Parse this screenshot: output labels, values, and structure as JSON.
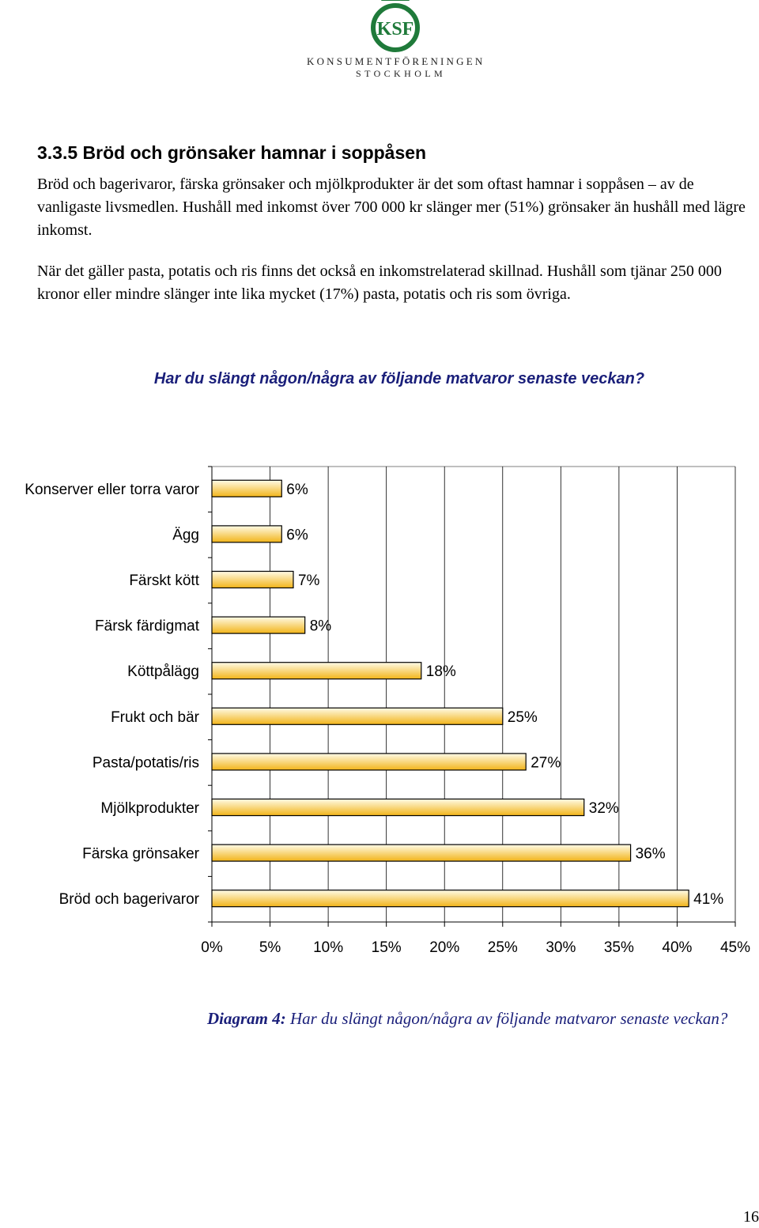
{
  "logo": {
    "monogram": "KSF",
    "line1": "KONSUMENTFÖRENINGEN",
    "line2": "STOCKHOLM",
    "green": "#1f7a3a"
  },
  "section": {
    "heading": "3.3.5 Bröd och grönsaker hamnar i soppåsen",
    "paragraph1": "Bröd och bagerivaror, färska grönsaker och mjölkprodukter är det som oftast hamnar i soppåsen – av de vanligaste livsmedlen. Hushåll med inkomst över 700 000 kr slänger mer (51%) grönsaker än hushåll med lägre inkomst.",
    "paragraph2": "När det gäller pasta, potatis och ris finns det också en inkomstrelaterad skillnad. Hushåll som tjänar 250 000 kronor eller mindre slänger inte lika mycket (17%) pasta, potatis och ris som övriga."
  },
  "chart_data": {
    "type": "bar",
    "orientation": "horizontal",
    "title": "Har du slängt någon/några av följande matvaror senaste veckan?",
    "categories": [
      "Konserver eller torra varor",
      "Ägg",
      "Färskt kött",
      "Färsk färdigmat",
      "Köttpålägg",
      "Frukt och bär",
      "Pasta/potatis/ris",
      "Mjölkprodukter",
      "Färska grönsaker",
      "Bröd och bagerivaror"
    ],
    "values": [
      6,
      6,
      7,
      8,
      18,
      25,
      27,
      32,
      36,
      41
    ],
    "value_labels": [
      "6%",
      "6%",
      "7%",
      "8%",
      "18%",
      "25%",
      "27%",
      "32%",
      "36%",
      "41%"
    ],
    "xlim": [
      0,
      45
    ],
    "x_ticks": [
      0,
      5,
      10,
      15,
      20,
      25,
      30,
      35,
      40,
      45
    ],
    "x_tick_labels": [
      "0%",
      "5%",
      "10%",
      "15%",
      "20%",
      "25%",
      "30%",
      "35%",
      "40%",
      "45%"
    ],
    "grid": true,
    "legend": "none",
    "bar_color_light": "#fffbe8",
    "bar_color_dark": "#f2b418"
  },
  "caption": {
    "label": "Diagram 4:",
    "text": " Har du slängt någon/några av följande matvaror senaste veckan?"
  },
  "page_number": "16"
}
